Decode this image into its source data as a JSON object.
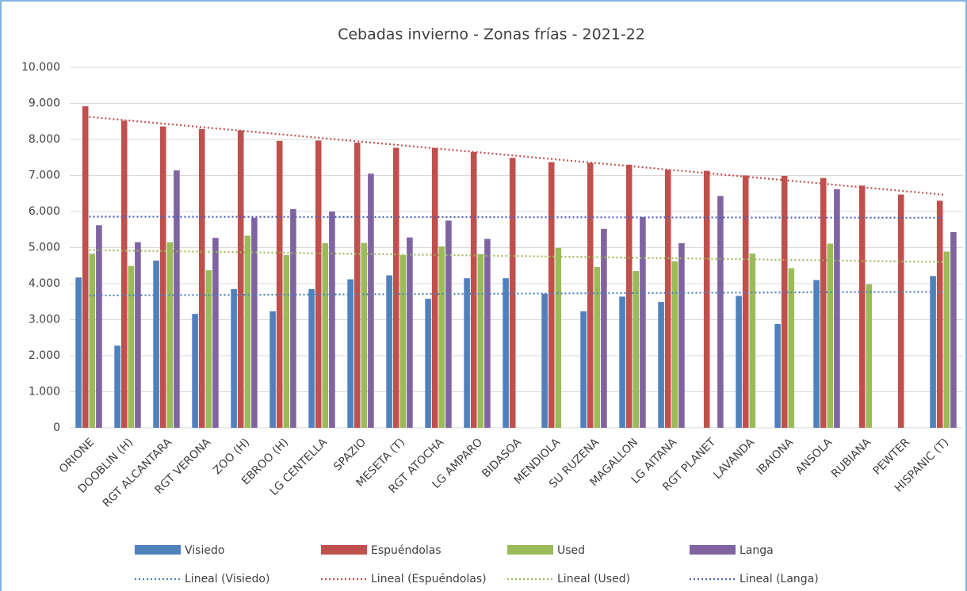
{
  "chart_data": {
    "type": "bar",
    "title": "Cebadas invierno - Zonas frías - 2021-22",
    "categories": [
      "ORIONE",
      "DOOBLIN (H)",
      "RGT ALCANTARA",
      "RGT VERONA",
      "ZOO (H)",
      "EBROO (H)",
      "LG CENTELLA",
      "SPAZIO",
      "MESETA (T)",
      "RGT ATOCHA",
      "LG AMPARO",
      "BIDASOA",
      "MENDIOLA",
      "SU RUZENA",
      "MAGALLON",
      "LG AITANA",
      "RGT PLANET",
      "LAVANDA",
      "IBAIONA",
      "ANSOLA",
      "RUBIANA",
      "PEWTER",
      "HISPANIC (T)"
    ],
    "series": [
      {
        "name": "Visiedo",
        "color": "#4f81bd",
        "values": [
          4170,
          2280,
          4640,
          3160,
          3850,
          3230,
          3850,
          4120,
          4230,
          3580,
          4150,
          4150,
          3720,
          3230,
          3640,
          3490,
          null,
          3660,
          2880,
          4100,
          null,
          null,
          4210
        ]
      },
      {
        "name": "Espuéndolas",
        "color": "#c0504d",
        "values": [
          8920,
          8520,
          8360,
          8290,
          8250,
          7960,
          7970,
          7910,
          7770,
          7760,
          7650,
          7490,
          7370,
          7350,
          7300,
          7160,
          7130,
          7000,
          6990,
          6930,
          6720,
          6470,
          6300
        ]
      },
      {
        "name": "Used",
        "color": "#9bbb59",
        "values": [
          4830,
          4490,
          5150,
          4370,
          5330,
          4790,
          5120,
          5130,
          4790,
          5030,
          4820,
          null,
          4990,
          4460,
          4350,
          4620,
          null,
          4830,
          4430,
          5110,
          3980,
          null,
          4890
        ]
      },
      {
        "name": "Langa",
        "color": "#8064a2",
        "values": [
          5620,
          5150,
          7140,
          5270,
          5830,
          6070,
          6000,
          7050,
          5280,
          5750,
          5240,
          null,
          null,
          5520,
          5850,
          5120,
          6430,
          null,
          null,
          6620,
          null,
          null,
          5430
        ]
      }
    ],
    "trendlines": [
      {
        "name": "Lineal (Visiedo)",
        "series": 0,
        "color": "#4f81bd"
      },
      {
        "name": "Lineal (Espuéndolas)",
        "series": 1,
        "color": "#c0504d"
      },
      {
        "name": "Lineal (Used)",
        "series": 2,
        "color": "#9bbb59"
      },
      {
        "name": "Lineal (Langa)",
        "series": 3,
        "color": "#4f5fbd"
      }
    ],
    "ylim": [
      0,
      10000
    ],
    "yticks": [
      0,
      {
        "value": 1000,
        "label": "1.000"
      },
      {
        "value": 2000,
        "label": "2.000"
      },
      {
        "value": 3000,
        "label": "3.000"
      },
      {
        "value": 4000,
        "label": "4.000"
      },
      {
        "value": 5000,
        "label": "5.000"
      },
      {
        "value": 6000,
        "label": "6.000"
      },
      {
        "value": 7000,
        "label": "7.000"
      },
      {
        "value": 8000,
        "label": "8.000"
      },
      {
        "value": 9000,
        "label": "9.000"
      },
      {
        "value": 10000,
        "label": "10.000"
      }
    ],
    "grid": true,
    "legend": "bottom"
  }
}
